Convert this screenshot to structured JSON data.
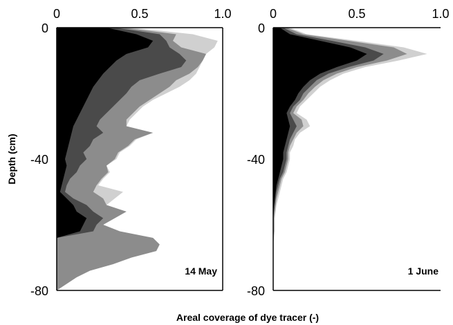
{
  "chart_data": {
    "type": "area",
    "ylabel": "Depth (cm)",
    "xlabel": "Areal coverage of dye tracer (-)",
    "panels": [
      {
        "label": "14 May",
        "xlim": [
          0,
          1.0
        ],
        "ylim": [
          -80,
          0
        ],
        "xticks": [
          "0",
          "0.5",
          "1.0"
        ],
        "yticks": [
          "0",
          "-40",
          "-80"
        ],
        "series": [
          {
            "color": "#d0d0d0",
            "depth": [
              0,
              -2,
              -4,
              -6,
              -8,
              -10,
              -12,
              -14,
              -16,
              -18,
              -20,
              -22,
              -24,
              -26,
              -28,
              -30,
              -32,
              -34,
              -36,
              -38,
              -40,
              -42,
              -44,
              -46,
              -48,
              -50,
              -52,
              -54,
              -56,
              -58,
              -60,
              -62,
              -64,
              -66,
              -68,
              -70,
              -72,
              -74,
              -76,
              -78,
              -80
            ],
            "coverage": [
              0.45,
              0.82,
              0.97,
              0.95,
              0.9,
              0.88,
              0.86,
              0.84,
              0.8,
              0.74,
              0.66,
              0.58,
              0.52,
              0.48,
              0.44,
              0.42,
              0.58,
              0.48,
              0.44,
              0.38,
              0.36,
              0.3,
              0.32,
              0.28,
              0.25,
              0.4,
              0.35,
              0.3,
              0.42,
              0.35,
              0.28,
              0.38,
              0.58,
              0.62,
              0.6,
              0.45,
              0.34,
              0.2,
              0.12,
              0.06,
              0.0
            ]
          },
          {
            "color": "#8c8c8c",
            "depth": [
              0,
              -2,
              -4,
              -6,
              -8,
              -10,
              -12,
              -14,
              -16,
              -18,
              -20,
              -22,
              -24,
              -26,
              -28,
              -30,
              -32,
              -34,
              -36,
              -38,
              -40,
              -42,
              -44,
              -46,
              -48,
              -50,
              -52,
              -54,
              -56,
              -58,
              -60,
              -62,
              -64,
              -66,
              -68,
              -70,
              -72,
              -74,
              -76,
              -78,
              -80
            ],
            "coverage": [
              0.4,
              0.72,
              0.7,
              0.75,
              0.9,
              0.88,
              0.85,
              0.8,
              0.72,
              0.68,
              0.62,
              0.56,
              0.5,
              0.46,
              0.42,
              0.42,
              0.58,
              0.47,
              0.43,
              0.37,
              0.35,
              0.3,
              0.31,
              0.27,
              0.24,
              0.22,
              0.28,
              0.3,
              0.42,
              0.35,
              0.28,
              0.38,
              0.58,
              0.62,
              0.6,
              0.45,
              0.34,
              0.2,
              0.12,
              0.06,
              0.0
            ]
          },
          {
            "color": "#4a4a4a",
            "depth": [
              0,
              -2,
              -4,
              -6,
              -8,
              -10,
              -12,
              -14,
              -16,
              -18,
              -20,
              -22,
              -24,
              -26,
              -28,
              -30,
              -32,
              -34,
              -36,
              -38,
              -40,
              -42,
              -44,
              -46,
              -48,
              -50,
              -52,
              -54,
              -56,
              -58,
              -60,
              -62,
              -64,
              -66,
              -68,
              -70,
              -72,
              -74,
              -76,
              -78,
              -80
            ],
            "coverage": [
              0.35,
              0.62,
              0.66,
              0.68,
              0.74,
              0.78,
              0.75,
              0.62,
              0.5,
              0.45,
              0.42,
              0.38,
              0.34,
              0.3,
              0.26,
              0.24,
              0.28,
              0.22,
              0.2,
              0.16,
              0.18,
              0.14,
              0.12,
              0.08,
              0.06,
              0.05,
              0.1,
              0.18,
              0.22,
              0.28,
              0.24,
              0.22,
              0.0,
              0.0,
              0.0,
              0.0,
              0.0,
              0.0,
              0.0,
              0.0,
              0.0
            ]
          },
          {
            "color": "#000000",
            "depth": [
              0,
              -2,
              -4,
              -6,
              -8,
              -10,
              -12,
              -14,
              -16,
              -18,
              -20,
              -22,
              -24,
              -26,
              -28,
              -30,
              -32,
              -34,
              -36,
              -38,
              -40,
              -42,
              -44,
              -46,
              -48,
              -50,
              -52,
              -54,
              -56,
              -58,
              -60,
              -62,
              -64,
              -66,
              -68,
              -70,
              -72,
              -74,
              -76,
              -78,
              -80
            ],
            "coverage": [
              0.3,
              0.48,
              0.58,
              0.55,
              0.42,
              0.36,
              0.32,
              0.28,
              0.25,
              0.22,
              0.2,
              0.18,
              0.16,
              0.14,
              0.12,
              0.1,
              0.09,
              0.08,
              0.07,
              0.06,
              0.05,
              0.06,
              0.05,
              0.04,
              0.03,
              0.02,
              0.06,
              0.1,
              0.12,
              0.18,
              0.16,
              0.14,
              0.0,
              0.0,
              0.0,
              0.0,
              0.0,
              0.0,
              0.0,
              0.0,
              0.0
            ]
          }
        ]
      },
      {
        "label": "1 June",
        "xlim": [
          0,
          1.0
        ],
        "ylim": [
          -80,
          0
        ],
        "xticks": [
          "0",
          "0.5",
          "1.0"
        ],
        "yticks": [
          "0",
          "-40",
          "-80"
        ],
        "series": [
          {
            "color": "#d0d0d0",
            "depth": [
              0,
              -2,
              -4,
              -6,
              -8,
              -10,
              -12,
              -14,
              -16,
              -18,
              -20,
              -22,
              -24,
              -26,
              -28,
              -30,
              -32,
              -34,
              -36,
              -38,
              -40,
              -42,
              -44,
              -46,
              -48,
              -50,
              -52,
              -54,
              -56,
              -58,
              -60,
              -62,
              -64,
              -66
            ],
            "coverage": [
              0.1,
              0.2,
              0.5,
              0.78,
              0.92,
              0.75,
              0.55,
              0.42,
              0.34,
              0.28,
              0.24,
              0.2,
              0.16,
              0.14,
              0.2,
              0.22,
              0.16,
              0.13,
              0.12,
              0.1,
              0.1,
              0.09,
              0.08,
              0.06,
              0.05,
              0.04,
              0.03,
              0.02,
              0.015,
              0.01,
              0.01,
              0.01,
              0.005,
              0.0
            ]
          },
          {
            "color": "#8c8c8c",
            "depth": [
              0,
              -2,
              -4,
              -6,
              -8,
              -10,
              -12,
              -14,
              -16,
              -18,
              -20,
              -22,
              -24,
              -26,
              -28,
              -30,
              -32,
              -34,
              -36,
              -38,
              -40,
              -42,
              -44,
              -46,
              -48,
              -50,
              -52,
              -54,
              -56,
              -58,
              -60,
              -62,
              -64,
              -66
            ],
            "coverage": [
              0.08,
              0.18,
              0.45,
              0.72,
              0.8,
              0.68,
              0.5,
              0.38,
              0.3,
              0.25,
              0.21,
              0.18,
              0.14,
              0.12,
              0.17,
              0.18,
              0.14,
              0.12,
              0.1,
              0.09,
              0.09,
              0.08,
              0.07,
              0.05,
              0.04,
              0.03,
              0.02,
              0.015,
              0.01,
              0.005,
              0.005,
              0.005,
              0.0,
              0.0
            ]
          },
          {
            "color": "#4a4a4a",
            "depth": [
              0,
              -2,
              -4,
              -6,
              -8,
              -10,
              -12,
              -14,
              -16,
              -18,
              -20,
              -22,
              -24,
              -26,
              -28,
              -30,
              -32,
              -34,
              -36,
              -38,
              -40,
              -42,
              -44,
              -46,
              -48,
              -50,
              -52,
              -54,
              -56,
              -58,
              -60,
              -62,
              -64,
              -66
            ],
            "coverage": [
              0.06,
              0.14,
              0.35,
              0.55,
              0.66,
              0.6,
              0.45,
              0.33,
              0.26,
              0.22,
              0.18,
              0.16,
              0.12,
              0.1,
              0.12,
              0.14,
              0.12,
              0.1,
              0.09,
              0.08,
              0.08,
              0.07,
              0.06,
              0.04,
              0.03,
              0.02,
              0.015,
              0.01,
              0.005,
              0.0,
              0.0,
              0.0,
              0.0,
              0.0
            ]
          },
          {
            "color": "#000000",
            "depth": [
              0,
              -2,
              -4,
              -6,
              -8,
              -10,
              -12,
              -14,
              -16,
              -18,
              -20,
              -22,
              -24,
              -26,
              -28,
              -30,
              -32,
              -34,
              -36,
              -38,
              -40,
              -42,
              -44,
              -46,
              -48,
              -50,
              -52,
              -54,
              -56,
              -58,
              -60,
              -62,
              -64,
              -66
            ],
            "coverage": [
              0.04,
              0.1,
              0.28,
              0.46,
              0.56,
              0.5,
              0.38,
              0.28,
              0.22,
              0.18,
              0.15,
              0.13,
              0.1,
              0.08,
              0.09,
              0.1,
              0.09,
              0.08,
              0.07,
              0.06,
              0.06,
              0.05,
              0.04,
              0.03,
              0.02,
              0.015,
              0.01,
              0.005,
              0.0,
              0.0,
              0.0,
              0.0,
              0.0,
              0.0
            ]
          }
        ]
      }
    ]
  }
}
